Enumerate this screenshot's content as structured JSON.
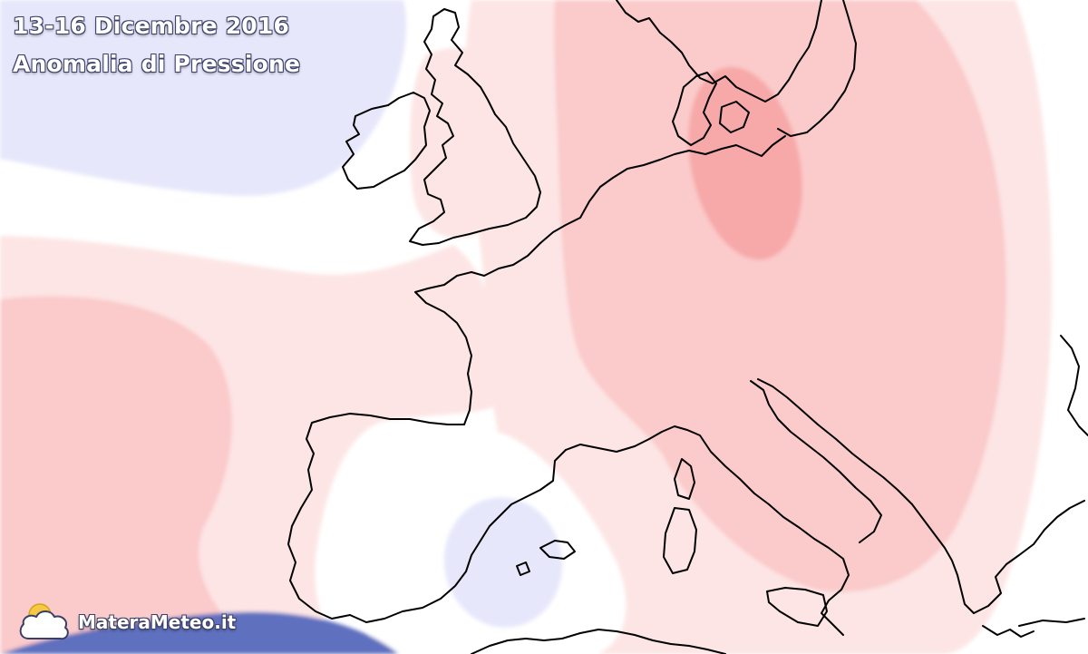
{
  "title": {
    "date_range": "13-16 Dicembre 2016",
    "variable": "Anomalia di Pressione"
  },
  "branding": {
    "name": "MateraMeteo.it",
    "logo_icon": "sun-cloud-map-icon"
  },
  "colors": {
    "positive_anomaly_light": "#fde4e4",
    "positive_anomaly_medium": "#fbc8c8",
    "positive_anomaly_strong": "#f7a8a8",
    "negative_anomaly_light": "#e4e6fb",
    "negative_anomaly_strong": "#5f6fbf",
    "neutral": "#ffffff",
    "coastline": "#000000"
  }
}
